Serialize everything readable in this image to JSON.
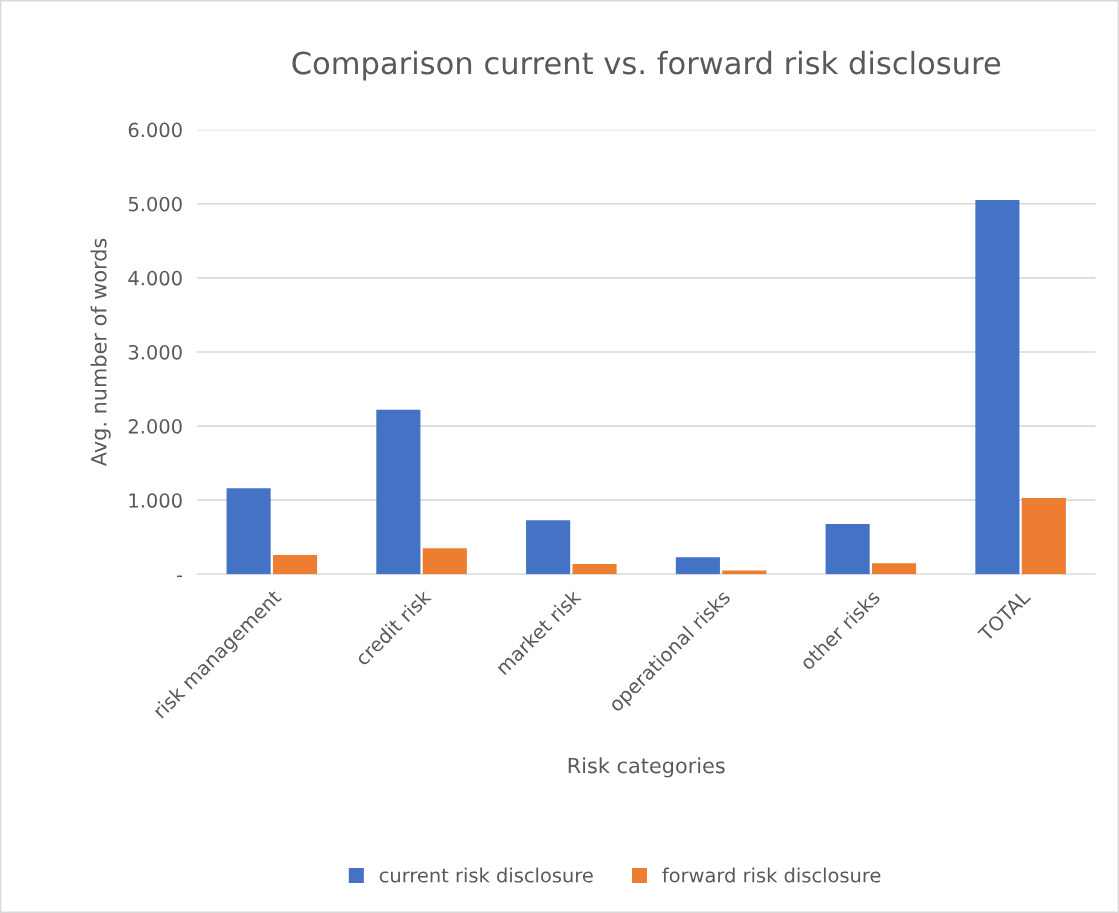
{
  "chart_data": {
    "type": "bar",
    "title": "Comparison current vs. forward risk disclosure",
    "xlabel": "Risk categories",
    "ylabel": "Avg. number of words",
    "categories": [
      "risk management",
      "credit risk",
      "market risk",
      "operational risks",
      "other risks",
      "TOTAL"
    ],
    "series": [
      {
        "name": "current risk disclosure",
        "color": "#4472c4",
        "values": [
          1160,
          2220,
          730,
          230,
          680,
          5050
        ]
      },
      {
        "name": "forward risk disclosure",
        "color": "#ed7d31",
        "values": [
          260,
          350,
          140,
          50,
          150,
          1030
        ]
      }
    ],
    "ylim": [
      0,
      6000
    ],
    "yticks": [
      {
        "value": 0,
        "label": "-"
      },
      {
        "value": 1000,
        "label": "1.000"
      },
      {
        "value": 2000,
        "label": "2.000"
      },
      {
        "value": 3000,
        "label": "3.000"
      },
      {
        "value": 4000,
        "label": "4.000"
      },
      {
        "value": 5000,
        "label": "5.000"
      },
      {
        "value": 6000,
        "label": "6.000"
      }
    ],
    "grid": "y",
    "legend": "bottom"
  }
}
